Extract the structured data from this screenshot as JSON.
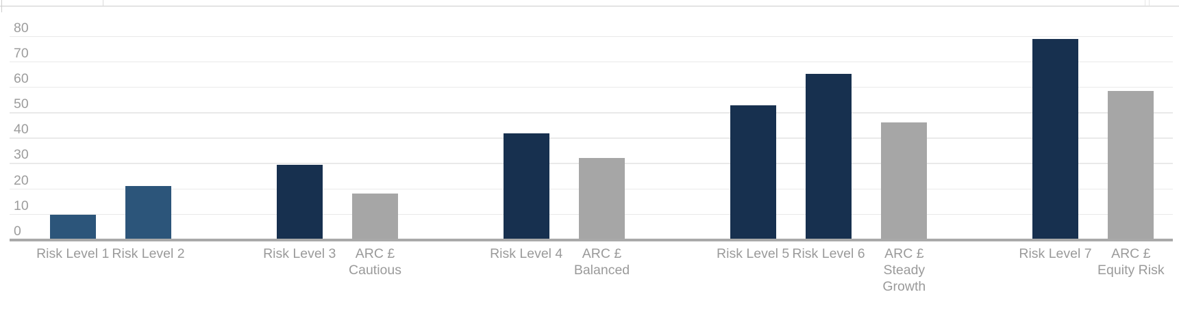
{
  "chart_data": {
    "type": "bar",
    "title": "",
    "xlabel": "",
    "ylabel": "",
    "ylim": [
      0,
      80
    ],
    "yticks": [
      0,
      10,
      20,
      30,
      40,
      50,
      60,
      70,
      80
    ],
    "grid": true,
    "legend_position": "none",
    "categories": [
      "Risk Level 1",
      "Risk Level 2",
      "Risk Level 3",
      "ARC £ Cautious",
      "Risk Level 4",
      "ARC £ Balanced",
      "Risk Level 5",
      "Risk Level 6",
      "ARC £ Steady Growth",
      "Risk Level 7",
      "ARC £ Equity Risk"
    ],
    "values": [
      9.6,
      21.1,
      29.3,
      18.1,
      41.6,
      31.9,
      52.7,
      65.1,
      46,
      78.9,
      58.4
    ],
    "bars": [
      {
        "label": "Risk Level 1",
        "label_lines": [
          "Risk Level 1"
        ],
        "value": 9.6,
        "slot": 1,
        "color": "#2C557A"
      },
      {
        "label": "Risk Level 2",
        "label_lines": [
          "Risk Level 2"
        ],
        "value": 21.1,
        "slot": 2,
        "color": "#2C557A"
      },
      {
        "label": "Risk Level 3",
        "label_lines": [
          "Risk Level 3"
        ],
        "value": 29.3,
        "slot": 4,
        "color": "#17304F"
      },
      {
        "label": "ARC £ Cautious",
        "label_lines": [
          "ARC £",
          "Cautious"
        ],
        "value": 18.1,
        "slot": 5,
        "color": "#A6A6A6"
      },
      {
        "label": "Risk Level 4",
        "label_lines": [
          "Risk Level 4"
        ],
        "value": 41.6,
        "slot": 7,
        "color": "#17304F"
      },
      {
        "label": "ARC £ Balanced",
        "label_lines": [
          "ARC £",
          "Balanced"
        ],
        "value": 31.9,
        "slot": 8,
        "color": "#A6A6A6"
      },
      {
        "label": "Risk Level 5",
        "label_lines": [
          "Risk Level 5"
        ],
        "value": 52.7,
        "slot": 10,
        "color": "#17304F"
      },
      {
        "label": "Risk Level 6",
        "label_lines": [
          "Risk Level 6"
        ],
        "value": 65.1,
        "slot": 11,
        "color": "#17304F"
      },
      {
        "label": "ARC £ Steady Growth",
        "label_lines": [
          "ARC £",
          "Steady",
          "Growth"
        ],
        "value": 46,
        "slot": 12,
        "color": "#A6A6A6"
      },
      {
        "label": "Risk Level 7",
        "label_lines": [
          "Risk Level 7"
        ],
        "value": 78.9,
        "slot": 14,
        "color": "#17304F"
      },
      {
        "label": "ARC £ Equity Risk",
        "label_lines": [
          "ARC £",
          "Equity Risk"
        ],
        "value": 58.4,
        "slot": 15,
        "color": "#A6A6A6"
      }
    ]
  },
  "colors": {
    "navy_bar": "#17304F",
    "steel_blue_bar": "#2C557A",
    "gray_bar": "#A6A6A6",
    "gridline": "#E9E9E9",
    "axis_line": "#A9A9A9",
    "tick_text": "#9C9C9C",
    "label_text": "#9A9A9A",
    "top_border": "#E3E3E3"
  }
}
